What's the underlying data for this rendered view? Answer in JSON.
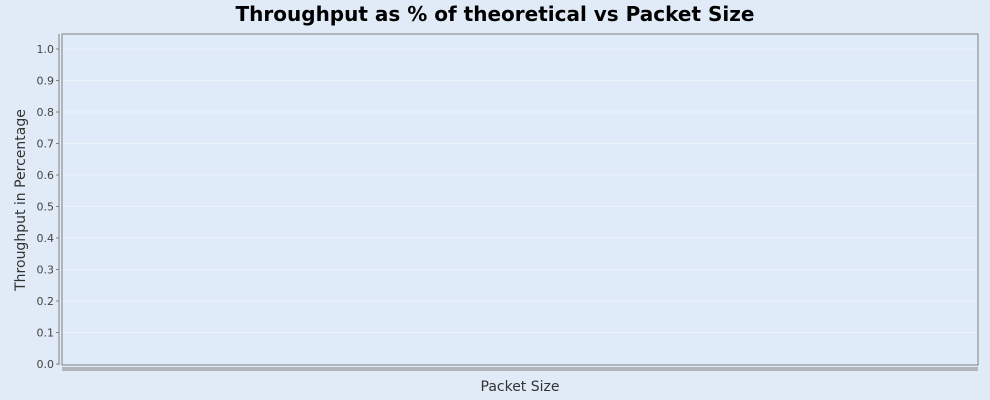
{
  "chart_data": {
    "type": "line",
    "title": "Throughput as % of theoretical vs Packet Size",
    "xlabel": "Packet Size",
    "ylabel": "Throughput in Percentage",
    "ylim": [
      0.0,
      1.0
    ],
    "yticks": [
      "0.0",
      "0.1",
      "0.2",
      "0.3",
      "0.4",
      "0.5",
      "0.6",
      "0.7",
      "0.8",
      "0.9",
      "1.0"
    ],
    "categories": [],
    "series": [],
    "grid": true
  },
  "colors": {
    "background": "#e1ebf7",
    "plot_background": "#dfebf8",
    "plot_border": "#808080",
    "gridline": "#eef3fa"
  }
}
